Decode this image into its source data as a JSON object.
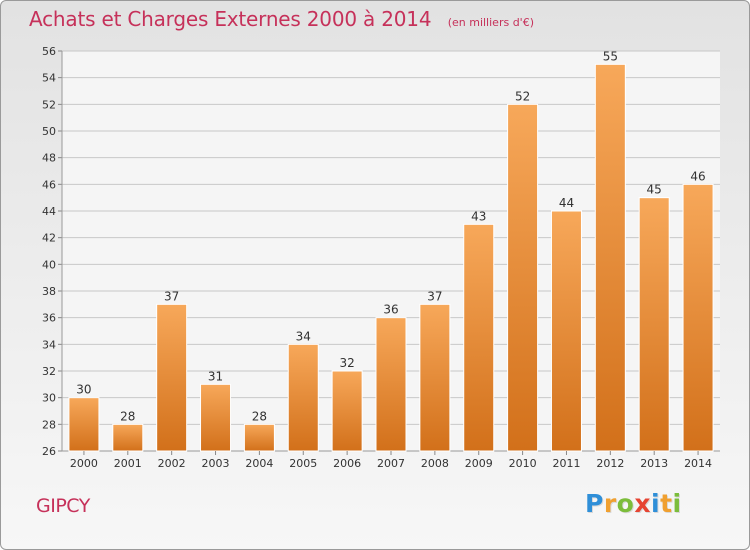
{
  "header": {
    "title": "Achats et Charges Externes 2000 à 2014",
    "unit": "(en milliers d'€)"
  },
  "footer": {
    "place": "GIPCY",
    "logo_letters": [
      {
        "char": "P",
        "color": "#2f8fd8"
      },
      {
        "char": "r",
        "color": "#f0a030"
      },
      {
        "char": "o",
        "color": "#7cbd3b"
      },
      {
        "char": "x",
        "color": "#e64432"
      },
      {
        "char": "i",
        "color": "#2f8fd8"
      },
      {
        "char": "t",
        "color": "#f0a030"
      },
      {
        "char": "i",
        "color": "#7cbd3b"
      }
    ]
  },
  "colors": {
    "title": "#c6315a",
    "bar_top": "#f7a85a",
    "bar_bottom": "#d2701a",
    "grid": "#c8c8c8",
    "plot_bg": "#f5f5f5",
    "axis_text": "#333333"
  },
  "chart_data": {
    "type": "bar",
    "categories": [
      "2000",
      "2001",
      "2002",
      "2003",
      "2004",
      "2005",
      "2006",
      "2007",
      "2008",
      "2009",
      "2010",
      "2011",
      "2012",
      "2013",
      "2014"
    ],
    "values": [
      30,
      28,
      37,
      31,
      28,
      34,
      32,
      36,
      37,
      43,
      52,
      44,
      55,
      45,
      46
    ],
    "ylim": [
      26,
      56
    ],
    "yticks": [
      26,
      28,
      30,
      32,
      34,
      36,
      38,
      40,
      42,
      44,
      46,
      48,
      50,
      52,
      54,
      56
    ],
    "grid": true,
    "data_labels": true
  }
}
